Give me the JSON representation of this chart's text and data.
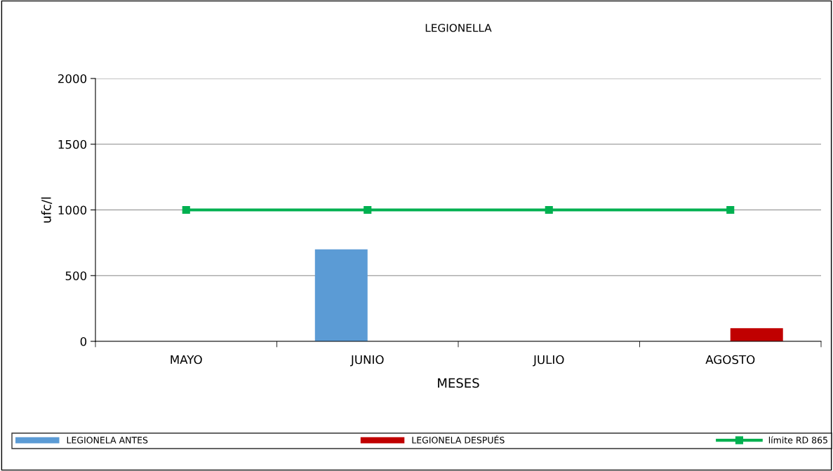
{
  "chart_data": {
    "type": "bar",
    "title": "LEGIONELLA",
    "xlabel": "MESES",
    "ylabel": "ufc/l",
    "categories": [
      "MAYO",
      "JUNIO",
      "JULIO",
      "AGOSTO"
    ],
    "series": [
      {
        "name": "LEGIONELA ANTES",
        "color": "#5b9bd5",
        "values": [
          null,
          700,
          null,
          null
        ]
      },
      {
        "name": "LEGIONELA DESPUÉS",
        "color": "#c00000",
        "values": [
          null,
          null,
          null,
          100
        ]
      },
      {
        "name": "límite RD 865",
        "type": "line",
        "color": "#00b050",
        "values": [
          1000,
          1000,
          1000,
          1000
        ],
        "marker": "square"
      }
    ],
    "ylim": [
      0,
      2000
    ],
    "yticks": [
      0,
      500,
      1000,
      1500,
      2000
    ],
    "grid": "y",
    "legend": "bottom"
  }
}
